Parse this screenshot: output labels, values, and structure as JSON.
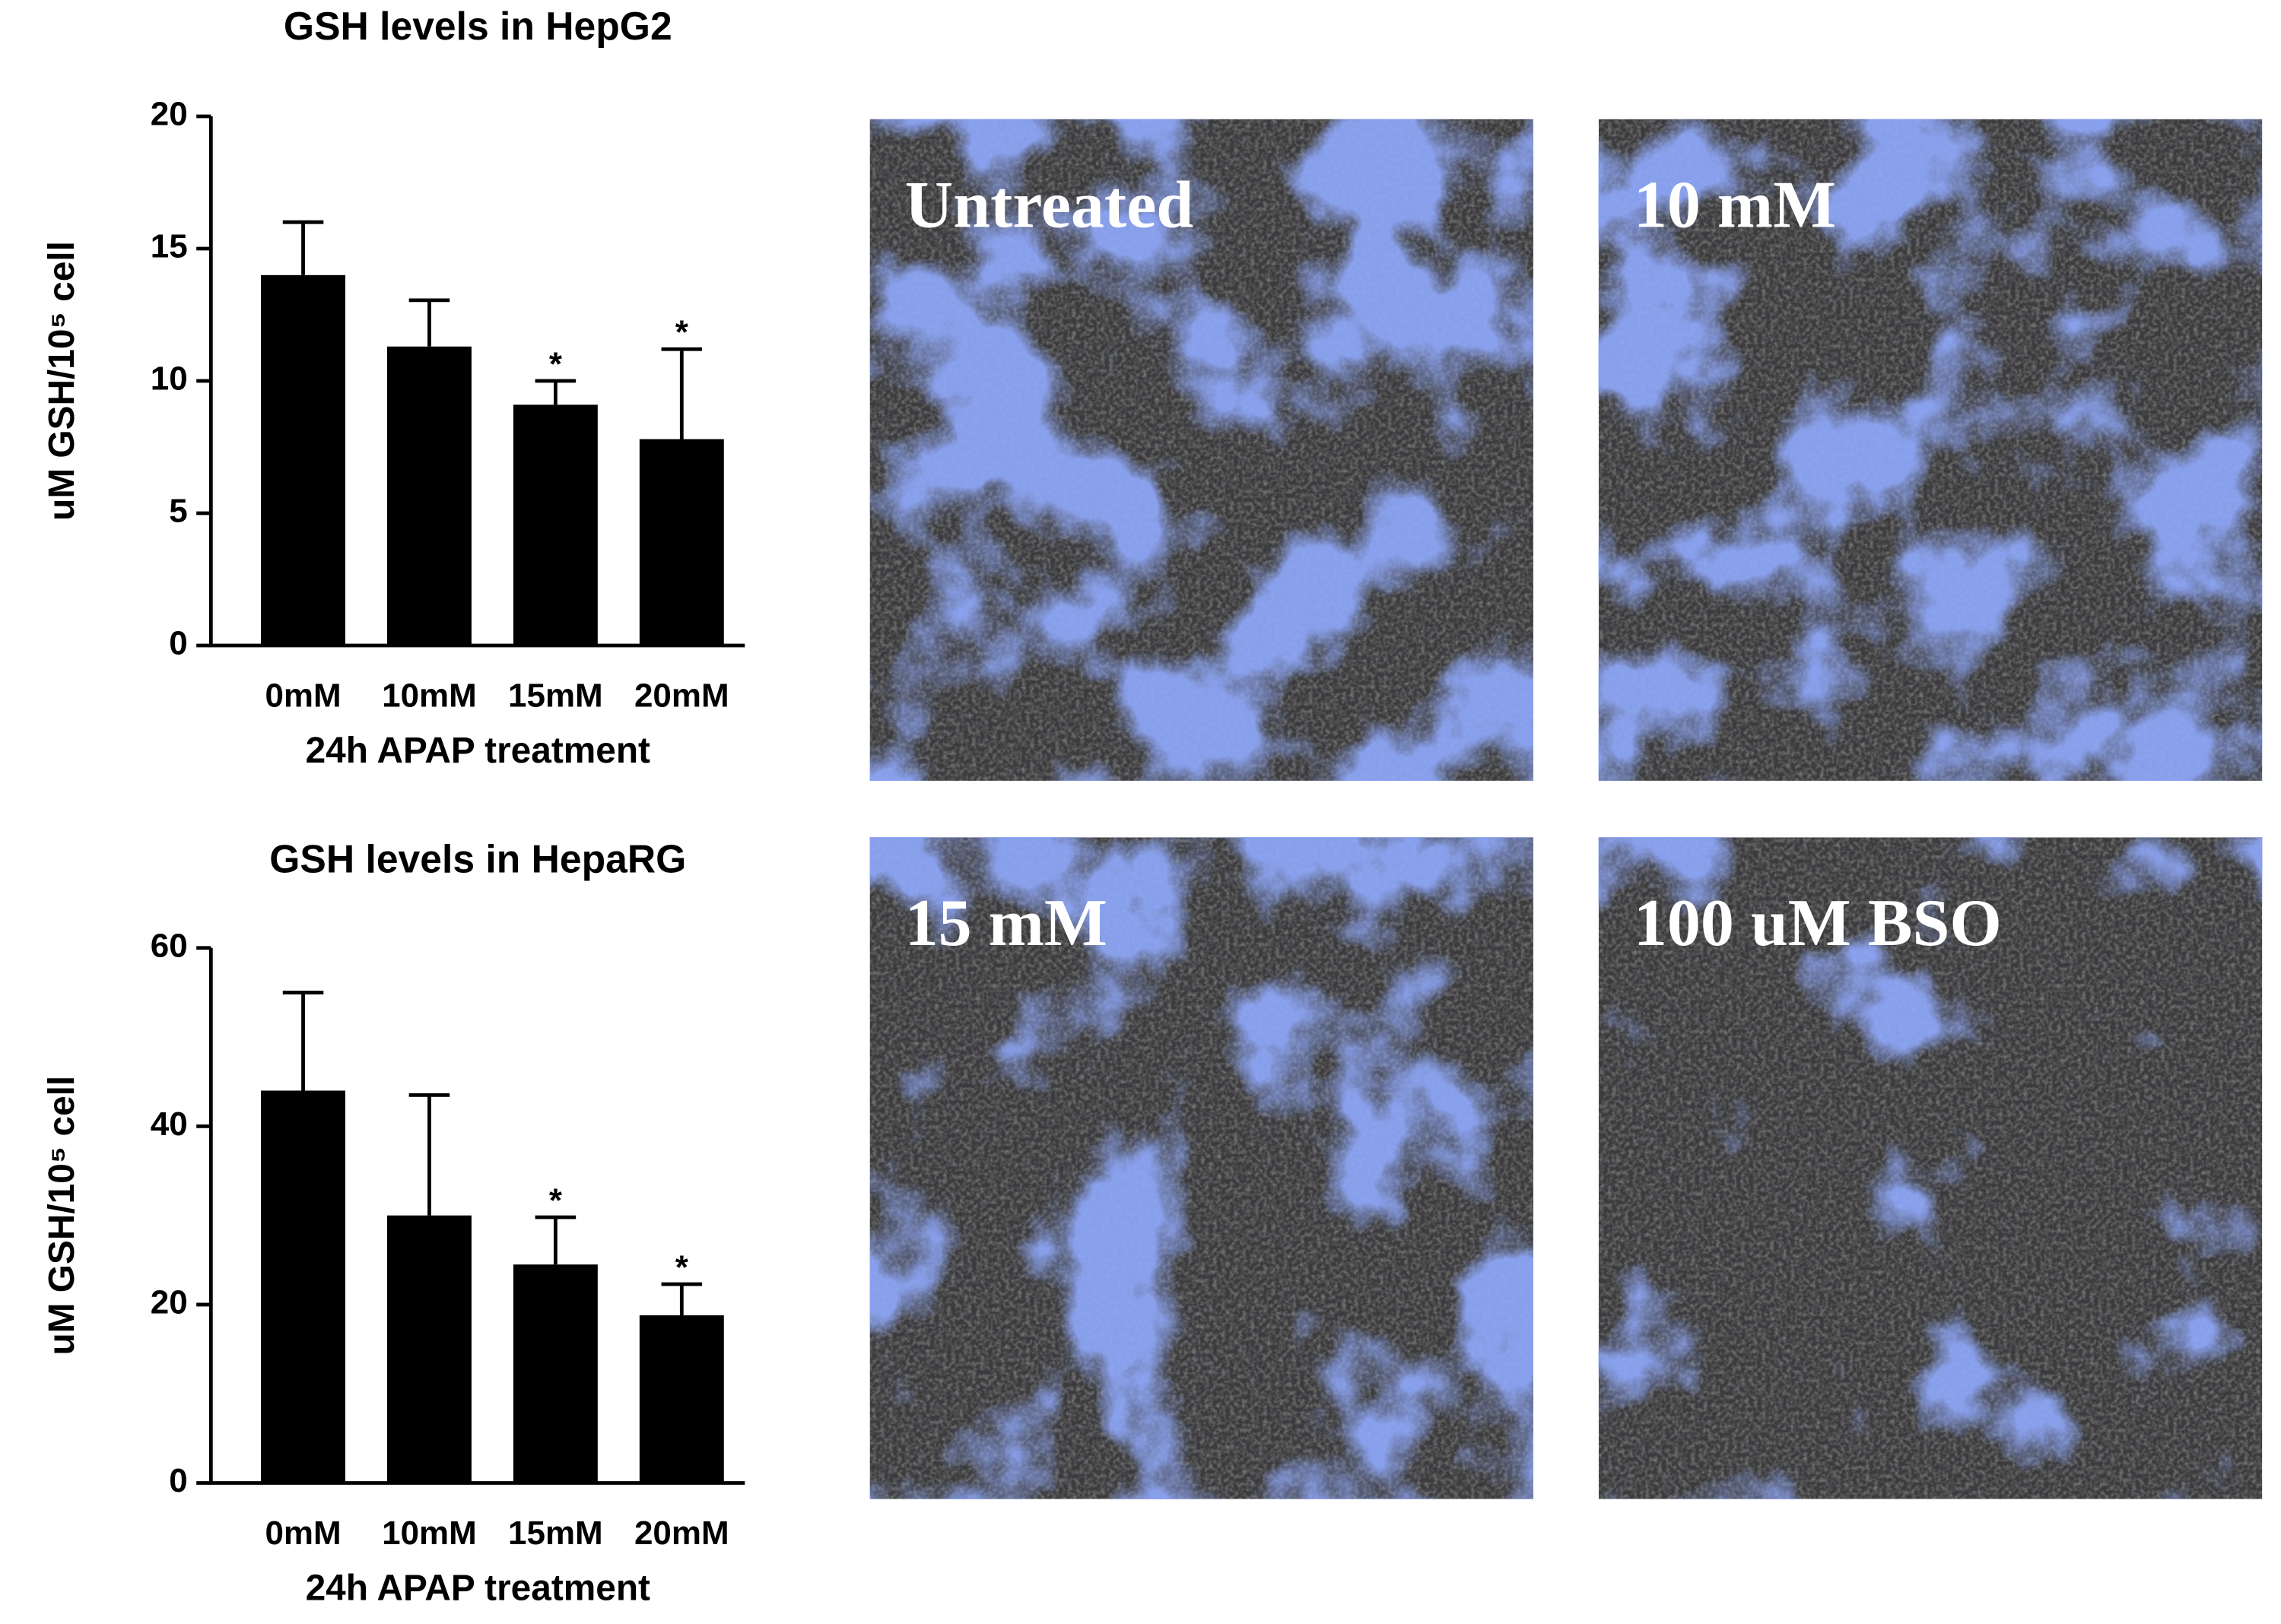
{
  "chart_data": [
    {
      "type": "bar",
      "title": "GSH levels in HepG2",
      "xlabel": "24h APAP treatment",
      "ylabel": "uM GSH/10⁵ cell",
      "categories": [
        "0mM",
        "10mM",
        "15mM",
        "20mM"
      ],
      "values": [
        14,
        11.3,
        9.1,
        7.8
      ],
      "errors": [
        2.0,
        1.75,
        0.9,
        3.4
      ],
      "annotations": [
        null,
        null,
        "*",
        "*"
      ],
      "color": "#000000",
      "ylim": [
        0,
        20
      ],
      "yticks": [
        0,
        5,
        10,
        15,
        20
      ]
    },
    {
      "type": "bar",
      "title": "GSH levels in HepaRG",
      "xlabel": "24h APAP treatment",
      "ylabel": "uM GSH/10⁵ cell",
      "categories": [
        "0mM",
        "10mM",
        "15mM",
        "20mM"
      ],
      "values": [
        44,
        30,
        24.5,
        18.8
      ],
      "errors": [
        11,
        13.5,
        5.3,
        3.5
      ],
      "annotations": [
        null,
        null,
        "*",
        "*"
      ],
      "color": "#000000",
      "ylim": [
        0,
        60
      ],
      "yticks": [
        0,
        20,
        40,
        60
      ]
    }
  ],
  "images": [
    {
      "label": "Untreated"
    },
    {
      "label": "10 mM"
    },
    {
      "label": "15 mM"
    },
    {
      "label": "100 uM BSO"
    }
  ]
}
